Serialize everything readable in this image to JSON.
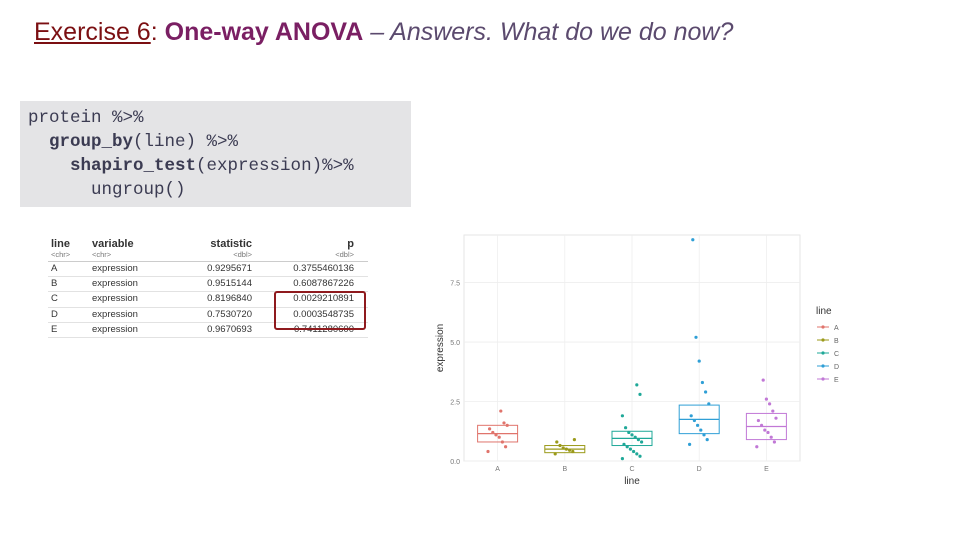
{
  "title": {
    "exercise": "Exercise 6",
    "colon": ":",
    "subject": "One-way ANOVA",
    "rest": " – Answers. What do we do now?"
  },
  "code": {
    "line1": "protein %>%",
    "line2_fn": "group_by",
    "line2_rest": "(line) %>%",
    "line3_fn": "shapiro_test",
    "line3_rest": "(expression)%>%",
    "line4": "ungroup()"
  },
  "table": {
    "headers": {
      "line": "line",
      "variable": "variable",
      "statistic": "statistic",
      "p": "p"
    },
    "types": {
      "line": "<chr>",
      "variable": "<chr>",
      "statistic": "<dbl>",
      "p": "<dbl>"
    },
    "rows": [
      {
        "line": "A",
        "variable": "expression",
        "statistic": "0.9295671",
        "p": "0.3755460136"
      },
      {
        "line": "B",
        "variable": "expression",
        "statistic": "0.9515144",
        "p": "0.6087867226"
      },
      {
        "line": "C",
        "variable": "expression",
        "statistic": "0.8196840",
        "p": "0.0029210891"
      },
      {
        "line": "D",
        "variable": "expression",
        "statistic": "0.7530720",
        "p": "0.0003548735"
      },
      {
        "line": "E",
        "variable": "expression",
        "statistic": "0.9670693",
        "p": "0.7411280600"
      }
    ]
  },
  "colors": {
    "A": "#e0746c",
    "B": "#9b9a1a",
    "C": "#1fa898",
    "D": "#2f9fd6",
    "E": "#c178d6",
    "highlight": "#8f1a1e"
  },
  "chart_data": {
    "type": "scatter",
    "xlabel": "line",
    "ylabel": "expression",
    "categories": [
      "A",
      "B",
      "C",
      "D",
      "E"
    ],
    "yticks": [
      "0.0",
      "2.5",
      "5.0",
      "7.5"
    ],
    "ylim": [
      0,
      9.5
    ],
    "legend": {
      "title": "line",
      "placement": "right",
      "entries": [
        "A",
        "B",
        "C",
        "D",
        "E"
      ]
    },
    "series": [
      {
        "name": "A",
        "mean": 1.15,
        "se": 0.35,
        "points": [
          0.4,
          0.6,
          0.8,
          1.0,
          1.1,
          1.2,
          1.35,
          1.5,
          1.6,
          2.1
        ]
      },
      {
        "name": "B",
        "mean": 0.5,
        "se": 0.15,
        "points": [
          0.3,
          0.4,
          0.45,
          0.5,
          0.55,
          0.65,
          0.8,
          0.9
        ]
      },
      {
        "name": "C",
        "mean": 0.95,
        "se": 0.3,
        "points": [
          0.1,
          0.2,
          0.3,
          0.4,
          0.5,
          0.6,
          0.7,
          0.8,
          0.9,
          1.0,
          1.1,
          1.2,
          1.4,
          1.9,
          2.8,
          3.2
        ]
      },
      {
        "name": "D",
        "mean": 1.75,
        "se": 0.6,
        "points": [
          0.7,
          0.9,
          1.1,
          1.3,
          1.5,
          1.7,
          1.9,
          2.4,
          2.9,
          3.3,
          4.2,
          5.2,
          9.3
        ]
      },
      {
        "name": "E",
        "mean": 1.45,
        "se": 0.55,
        "points": [
          0.6,
          0.8,
          1.0,
          1.2,
          1.3,
          1.5,
          1.7,
          1.8,
          2.1,
          2.4,
          2.6,
          3.4
        ]
      }
    ]
  }
}
